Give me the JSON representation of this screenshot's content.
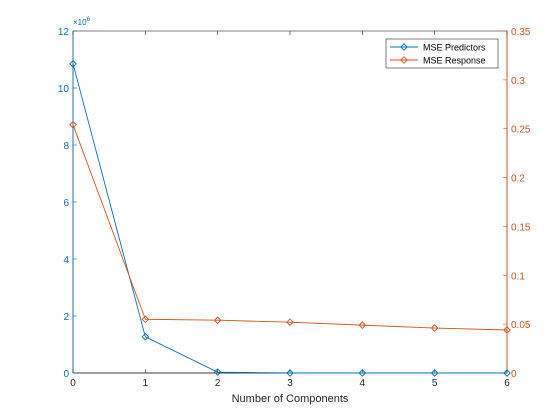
{
  "chart_data": {
    "type": "line",
    "xlabel": "Number of Components",
    "x": [
      0,
      1,
      2,
      3,
      4,
      5,
      6
    ],
    "x_ticks": [
      "0",
      "1",
      "2",
      "3",
      "4",
      "5",
      "6"
    ],
    "xlim": [
      0,
      6
    ],
    "yleft": {
      "ylim": [
        0,
        12
      ],
      "ticks": [
        "0",
        "2",
        "4",
        "6",
        "8",
        "10",
        "12"
      ],
      "exponent_label": "×10",
      "exponent_power": "6",
      "color": "#0072BD"
    },
    "yright": {
      "ylim": [
        0,
        0.35
      ],
      "ticks": [
        "0",
        "0.05",
        "0.1",
        "0.15",
        "0.2",
        "0.25",
        "0.3",
        "0.35"
      ],
      "color": "#D95319"
    },
    "series": [
      {
        "name": "MSE Predictors",
        "axis": "left",
        "color": "#0072BD",
        "marker": "diamond",
        "values": [
          10.85,
          1.27,
          0.03,
          0.0,
          0.0,
          0.0,
          0.0
        ]
      },
      {
        "name": "MSE Response",
        "axis": "right",
        "color": "#D95319",
        "marker": "diamond",
        "values": [
          0.254,
          0.055,
          0.054,
          0.052,
          0.049,
          0.046,
          0.044
        ]
      }
    ],
    "legend": {
      "placement": "top-right",
      "entries": [
        "MSE Predictors",
        "MSE Response"
      ]
    },
    "grid": false
  }
}
